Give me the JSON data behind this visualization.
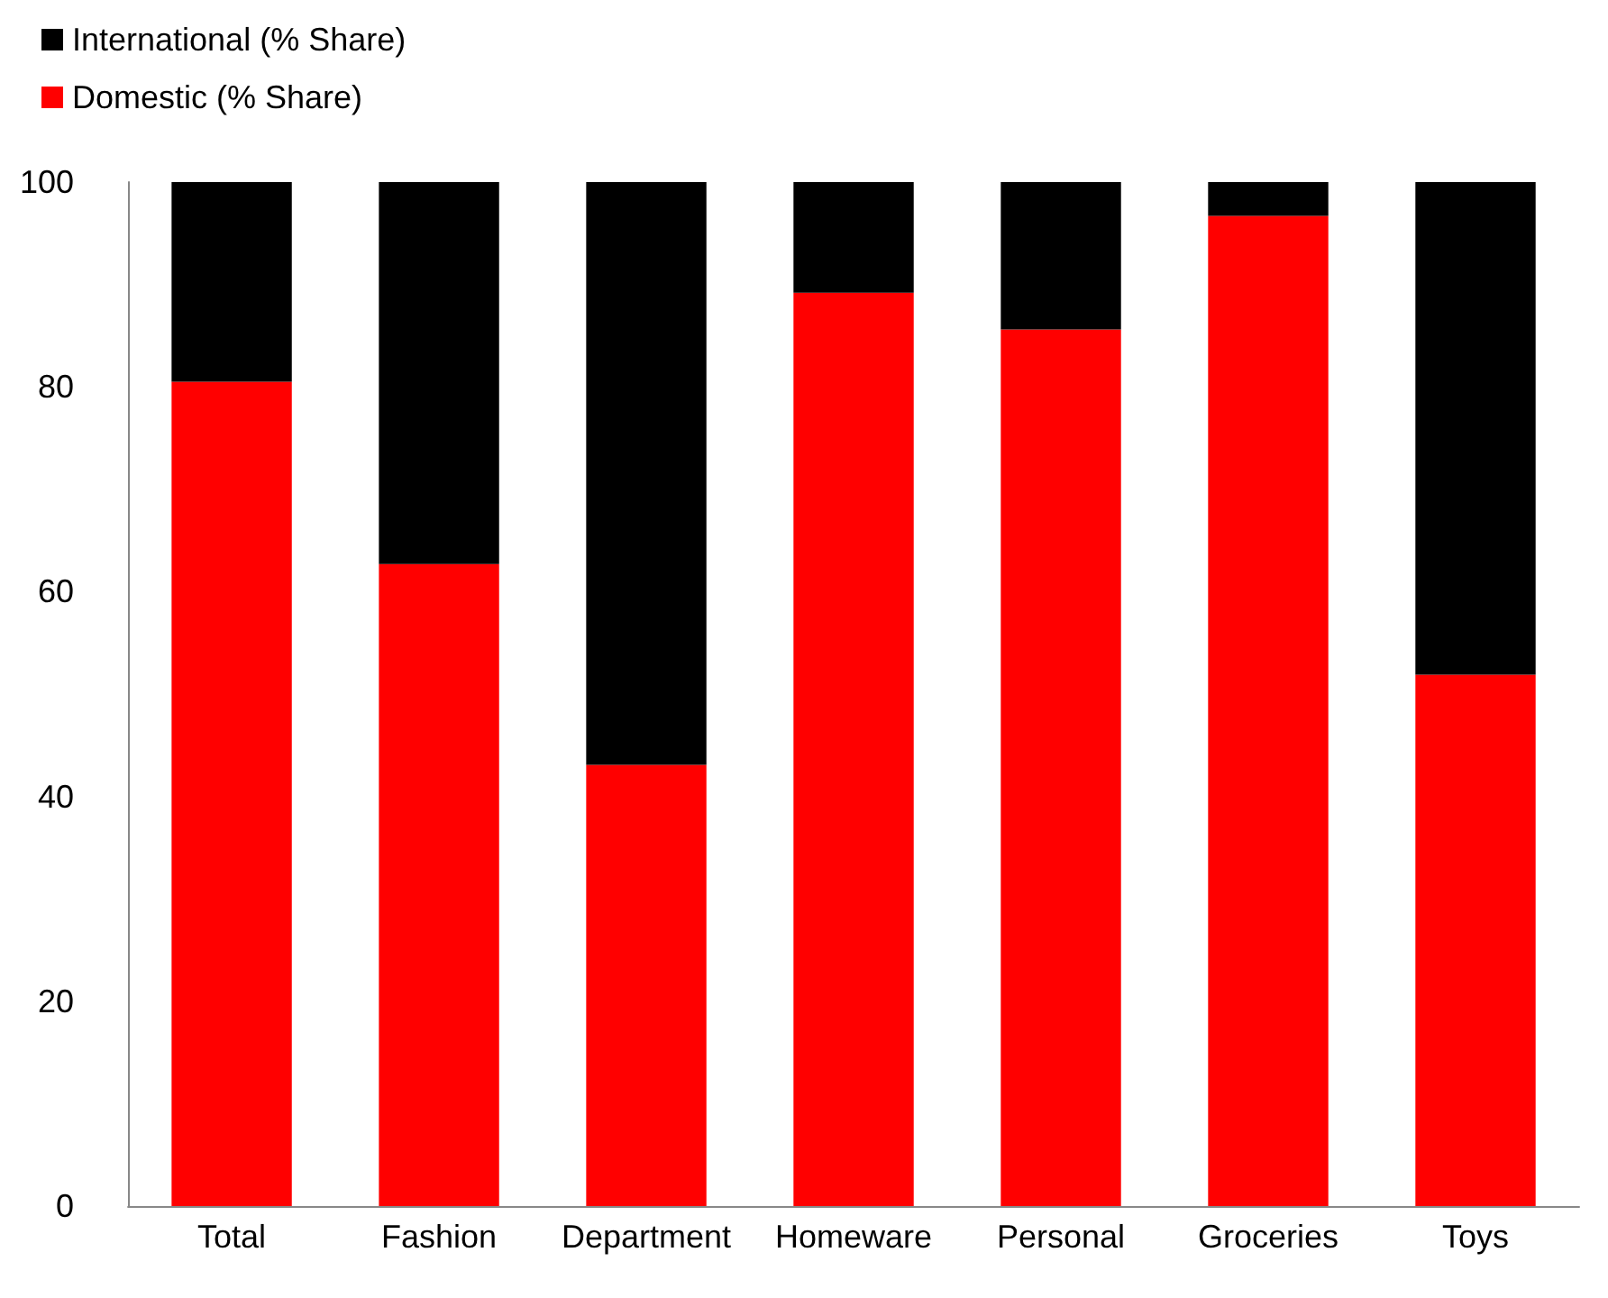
{
  "chart_data": {
    "type": "bar",
    "stacked": true,
    "categories": [
      "Total",
      "Fashion",
      "Department",
      "Homeware",
      "Personal",
      "Groceries",
      "Toys"
    ],
    "series": [
      {
        "name": "Domestic (% Share)",
        "color": "#ff0000",
        "values": [
          80.5,
          62.7,
          43.1,
          89.2,
          85.6,
          96.7,
          51.9
        ]
      },
      {
        "name": "International (% Share)",
        "color": "#000000",
        "values": [
          19.5,
          37.3,
          56.9,
          10.8,
          14.4,
          3.3,
          48.1
        ]
      }
    ],
    "ylim": [
      0,
      100
    ],
    "yticks": [
      0,
      20,
      40,
      60,
      80,
      100
    ],
    "grid": false,
    "legend": "top left"
  }
}
